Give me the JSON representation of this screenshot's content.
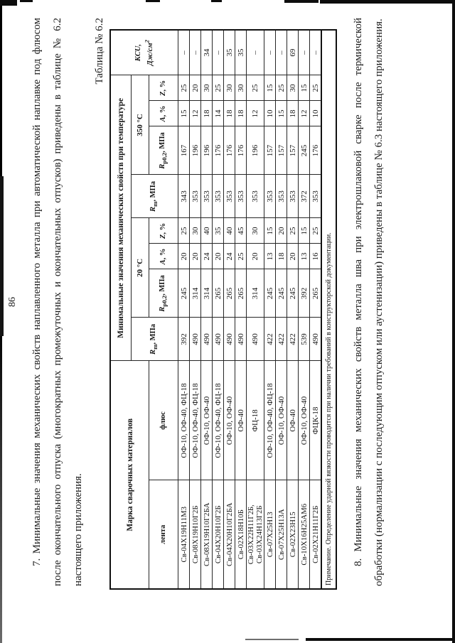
{
  "page": {
    "number": "86",
    "paragraph7": "7. Минимальные значения механических свойств наплавленного металла при автоматической наплавке под флюсом после окончательного отпуска (многократных промежуточных и окончательных отпусков) приведены в таблице № 6.2 настоящего приложения.",
    "table_caption": "Таблица № 6.2",
    "paragraph8": "8. Минимальные значения механических свойств металла шва при электрошлаковой сварке после термической обработки (нормализации с последующим отпуском или аустенизации) приведены в таблице № 6.3 настоящего приложения."
  },
  "table": {
    "header": {
      "marka": "Марка сварочных материалов",
      "lenta": "лента",
      "flux": "флюс",
      "props": "Минимальные значения механических свойств при температуре",
      "t20": "20 °С",
      "t350": "350 °С",
      "rm": {
        "base": "R",
        "sub": "m",
        "unit": ", МПа"
      },
      "rp": {
        "base": "R",
        "sub": "p0,2",
        "unit": ", МПа"
      },
      "a": {
        "base": "А",
        "unit": ", %"
      },
      "z": {
        "base": "Z",
        "unit": ", %"
      },
      "kcu": {
        "line1": "KCU,",
        "line2": "Дж/см",
        "sup": "2"
      }
    },
    "rows": [
      {
        "lenta": "Св-04Х19Н11М3",
        "flux": "ОФ-10, ОФ-40, ФЦ-18",
        "rm20": "392",
        "rp20": "245",
        "a20": "20",
        "z20": "25",
        "rm350": "343",
        "rp350": "167",
        "a350": "15",
        "z350": "25",
        "kcu": "–"
      },
      {
        "lenta": "Св-08Х19Н10Г2Б",
        "flux": "ОФ-10, ОФ-40, ФЦ-18",
        "rm20": "490",
        "rp20": "314",
        "a20": "20",
        "z20": "30",
        "rm350": "353",
        "rp350": "196",
        "a350": "12",
        "z350": "20",
        "kcu": "–"
      },
      {
        "lenta": "Св-08Х19Н10Г2БА",
        "flux": "ОФ-10, ОФ-40",
        "rm20": "490",
        "rp20": "314",
        "a20": "24",
        "z20": "40",
        "rm350": "353",
        "rp350": "196",
        "a350": "18",
        "z350": "30",
        "kcu": "34"
      },
      {
        "lenta": "Св-04Х20Н10Г2Б",
        "flux": "ОФ-10, ОФ-40, ФЦ-18",
        "rm20": "490",
        "rp20": "265",
        "a20": "20",
        "z20": "35",
        "rm350": "353",
        "rp350": "176",
        "a350": "14",
        "z350": "25",
        "kcu": "–"
      },
      {
        "lenta": "Св-04Х20Н10Г2БА",
        "flux": "ОФ-10, ОФ-40",
        "rm20": "490",
        "rp20": "265",
        "a20": "24",
        "z20": "40",
        "rm350": "353",
        "rp350": "176",
        "a350": "18",
        "z350": "30",
        "kcu": "35"
      },
      {
        "lenta": "Св-02Х18Н10Б",
        "flux": "ОФ-40",
        "rm20": "490",
        "rp20": "265",
        "a20": "25",
        "z20": "45",
        "rm350": "353",
        "rp350": "176",
        "a350": "18",
        "z350": "30",
        "kcu": "35"
      },
      {
        "lenta": "Св-03Х22Н11Г2Б, Св-03Х24Н13Г2Б",
        "flux": "ФЦ-18",
        "rm20": "490",
        "rp20": "314",
        "a20": "20",
        "z20": "30",
        "rm350": "353",
        "rp350": "196",
        "a350": "12",
        "z350": "25",
        "kcu": "–"
      },
      {
        "lenta": "Св-07Х25Н13",
        "flux": "ОФ-10, ОФ-40, ФЦ-18",
        "rm20": "422",
        "rp20": "245",
        "a20": "13",
        "z20": "15",
        "rm350": "353",
        "rp350": "157",
        "a350": "10",
        "z350": "15",
        "kcu": "–"
      },
      {
        "lenta": "Св-07Х25Н13А",
        "flux": "ОФ-10, ОФ-40",
        "rm20": "422",
        "rp20": "245",
        "a20": "18",
        "z20": "20",
        "rm350": "353",
        "rp350": "157",
        "a350": "15",
        "z350": "25",
        "kcu": "–"
      },
      {
        "lenta": "Св-02Х23Н15",
        "flux": "ОФ-40",
        "rm20": "422",
        "rp20": "245",
        "a20": "20",
        "z20": "25",
        "rm350": "353",
        "rp350": "157",
        "a350": "18",
        "z350": "30",
        "kcu": "69"
      },
      {
        "lenta": "Св-10Х16Н25АМ6",
        "flux": "ОФ-10, ОФ-40",
        "rm20": "539",
        "rp20": "392",
        "a20": "13",
        "z20": "15",
        "rm350": "372",
        "rp350": "245",
        "a350": "12",
        "z350": "15",
        "kcu": "–"
      },
      {
        "lenta": "Св-02Х21Н11Г2Б",
        "flux": "ФЦК-18",
        "rm20": "490",
        "rp20": "265",
        "a20": "16",
        "z20": "25",
        "rm350": "353",
        "rp350": "176",
        "a350": "10",
        "z350": "25",
        "kcu": "–"
      }
    ],
    "note": "Примечание. Определение ударной вязкости проводится при наличии требований в конструкторской документации."
  }
}
